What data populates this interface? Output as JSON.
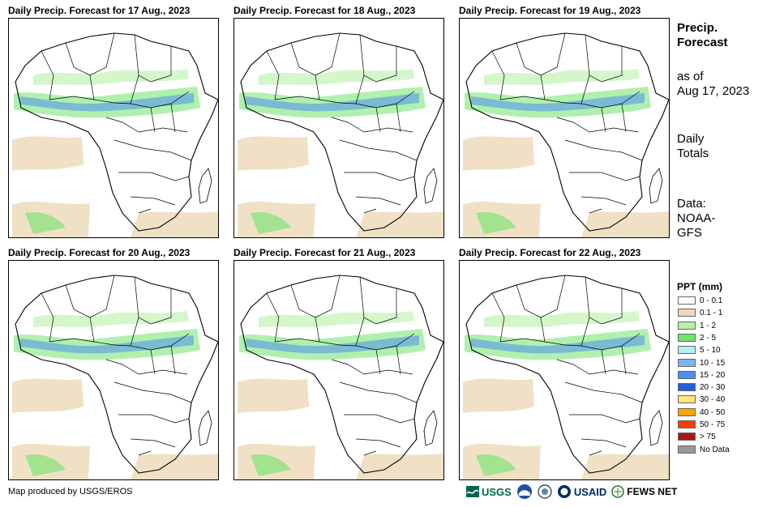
{
  "panels": [
    {
      "title": "Daily Precip. Forecast for 17 Aug., 2023"
    },
    {
      "title": "Daily Precip. Forecast for 18 Aug., 2023"
    },
    {
      "title": "Daily Precip. Forecast for 19 Aug., 2023"
    },
    {
      "title": "Daily Precip. Forecast for 20 Aug., 2023"
    },
    {
      "title": "Daily Precip. Forecast for 21 Aug., 2023"
    },
    {
      "title": "Daily Precip. Forecast for 22 Aug., 2023"
    }
  ],
  "side": {
    "heading_line1": "Precip.",
    "heading_line2": "Forecast",
    "asof_line1": "as of",
    "asof_line2": "Aug 17, 2023",
    "totals_line1": "Daily",
    "totals_line2": "Totals",
    "data_line1": "Data:",
    "data_line2": "NOAA-",
    "data_line3": "GFS"
  },
  "legend": {
    "title": "PPT (mm)",
    "items": [
      {
        "label": "0 - 0.1",
        "color": "#ffffff"
      },
      {
        "label": "0.1 - 1",
        "color": "#ecd9b8"
      },
      {
        "label": "1 - 2",
        "color": "#b6f0a8"
      },
      {
        "label": "2 - 5",
        "color": "#6fe36a"
      },
      {
        "label": "5 - 10",
        "color": "#b7eef2"
      },
      {
        "label": "10 - 15",
        "color": "#7fb6f0"
      },
      {
        "label": "15 - 20",
        "color": "#4f8ff0"
      },
      {
        "label": "20 - 30",
        "color": "#1f5fe0"
      },
      {
        "label": "30 - 40",
        "color": "#ffe680"
      },
      {
        "label": "40 - 50",
        "color": "#ffa500"
      },
      {
        "label": "50 - 75",
        "color": "#ff3b00"
      },
      {
        "label": "> 75",
        "color": "#a81616"
      },
      {
        "label": "No Data",
        "color": "#999999"
      }
    ]
  },
  "credit": "Map produced by USGS/EROS",
  "logos": {
    "usgs": "USGS",
    "usaid": "USAID",
    "fewsnet": "FEWS NET"
  }
}
